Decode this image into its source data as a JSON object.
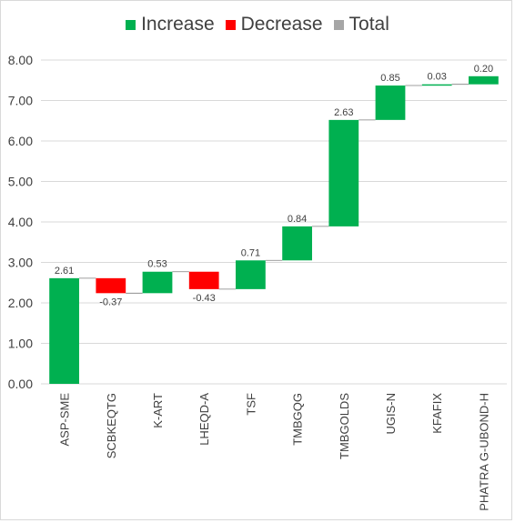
{
  "chart_data": {
    "type": "waterfall",
    "title": "",
    "xlabel": "",
    "ylabel": "",
    "ylim": [
      0,
      8
    ],
    "yticks": [
      "0.00",
      "1.00",
      "2.00",
      "3.00",
      "4.00",
      "5.00",
      "6.00",
      "7.00",
      "8.00"
    ],
    "grid": true,
    "legend_position": "top",
    "legend": [
      {
        "name": "Increase",
        "color": "#00b050"
      },
      {
        "name": "Decrease",
        "color": "#ff0000"
      },
      {
        "name": "Total",
        "color": "#a6a6a6"
      }
    ],
    "categories": [
      "ASP-SME",
      "SCBKEQTG",
      "K-ART",
      "LHEQD-A",
      "TSF",
      "TMBGQG",
      "TMBGOLDS",
      "UGIS-N",
      "KFAFIX",
      "PHATRA G-UBOND-H"
    ],
    "values": [
      2.61,
      -0.37,
      0.53,
      -0.43,
      0.71,
      0.84,
      2.63,
      0.85,
      0.03,
      0.2
    ],
    "labels": [
      "2.61",
      "-0.37",
      "0.53",
      "-0.43",
      "0.71",
      "0.84",
      "2.63",
      "0.85",
      "0.03",
      "0.20"
    ],
    "colors": {
      "increase": "#00b050",
      "decrease": "#ff0000",
      "total": "#a6a6a6",
      "grid": "#d9d9d9",
      "text": "#404040"
    }
  }
}
